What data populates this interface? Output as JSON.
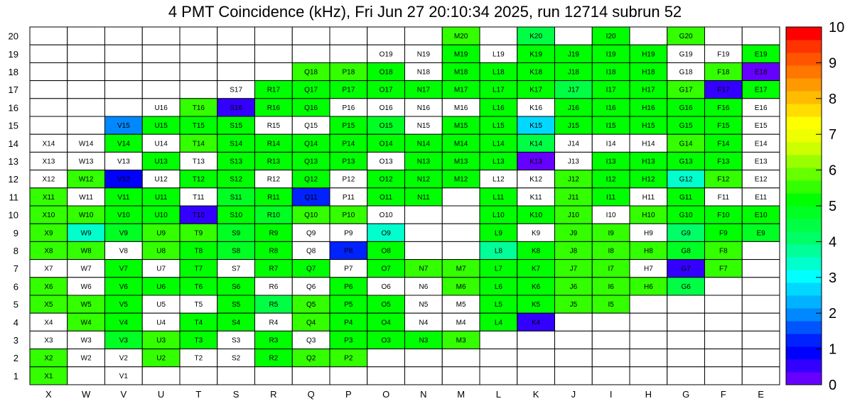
{
  "chart_data": {
    "type": "heatmap",
    "title": "4 PMT Coincidence (kHz), Fri Jun 27 20:10:34 2025, run 12714 subrun 52",
    "columns": [
      "X",
      "W",
      "V",
      "U",
      "T",
      "S",
      "R",
      "Q",
      "P",
      "O",
      "N",
      "M",
      "L",
      "K",
      "J",
      "I",
      "H",
      "G",
      "F",
      "E"
    ],
    "rows": [
      20,
      19,
      18,
      17,
      16,
      15,
      14,
      13,
      12,
      11,
      10,
      9,
      8,
      7,
      6,
      5,
      4,
      3,
      2,
      1
    ],
    "zlim": [
      0,
      10
    ],
    "colorbar_ticks": [
      "0",
      "1",
      "2",
      "3",
      "4",
      "5",
      "6",
      "7",
      "8",
      "9",
      "10"
    ],
    "grid": true,
    "legend_position": "right",
    "palette": [
      "#6600ff",
      "#3300ff",
      "#0000ff",
      "#0022ff",
      "#0055ff",
      "#0088ff",
      "#00b2ff",
      "#00d8ff",
      "#00ffff",
      "#00ffcc",
      "#00ff99",
      "#00ff66",
      "#00ff44",
      "#00ff22",
      "#00ff00",
      "#33ff00",
      "#66ff00",
      "#99ff00",
      "#ccff00",
      "#eeff00",
      "#ffff00",
      "#ffdd00",
      "#ffbb00",
      "#ff9900",
      "#ff7700",
      "#ff5500",
      "#ff3300",
      "#ff0000"
    ],
    "cells": [
      [
        "",
        "",
        "",
        "",
        "",
        "",
        "",
        "",
        "",
        "",
        "",
        "M20 5.4",
        "",
        "K20 4.6",
        "",
        "I20 5.3",
        "",
        "G20 5.4",
        "",
        ""
      ],
      [
        "",
        "",
        "",
        "",
        "",
        "",
        "",
        "",
        "",
        "O19",
        "N19",
        "M19 5.3",
        "L19",
        "K19 5.3",
        "J19 5.2",
        "I19 5.2",
        "H19 5.1",
        "G19",
        "F19",
        "E19 5.3"
      ],
      [
        "",
        "",
        "",
        "",
        "",
        "",
        "",
        "Q18 5.5",
        "P18 5.4",
        "O18 5.3",
        "N18",
        "M18 5.3",
        "L18 5.3",
        "K18 5.2",
        "J18 5.1",
        "I18 5.1",
        "H18 5.1",
        "G18",
        "F18 5.5",
        "E18 0.2"
      ],
      [
        "",
        "",
        "",
        "",
        "",
        "S17",
        "R17 5.3",
        "Q17 5.1",
        "P17 5.2",
        "O17 5.1",
        "N17 5.3",
        "M17 5.3",
        "L17 5.2",
        "K17 5.1",
        "J17 4.6",
        "I17 5.1",
        "H17 5.1",
        "G17 5.6",
        "F17 0.4",
        "E17 5.3"
      ],
      [
        "",
        "",
        "",
        "U16",
        "T16 5.5",
        "S16 0.6",
        "R16 5.2",
        "Q16 5.1",
        "P16",
        "O16",
        "N16",
        "M16",
        "L16 5.2",
        "K16",
        "J16 5.1",
        "I16 5.2",
        "H16 5.2",
        "G16 5.0",
        "F16 5.1",
        "E16"
      ],
      [
        "",
        "",
        "V15 2.1",
        "U15 5.0",
        "T15 5.3",
        "S15 5.1",
        "R15",
        "Q15",
        "P15 5.2",
        "O15 4.9",
        "N15",
        "M15 5.3",
        "L15 5.3",
        "K15 2.5",
        "J15 5.1",
        "I15 5.2",
        "H15 5.1",
        "G15 5.0",
        "F15 5.3",
        "E15"
      ],
      [
        "X14",
        "W14",
        "V14 5.0",
        "U14",
        "T14 5.4",
        "S14 5.1",
        "R14 5.2",
        "Q14 5.0",
        "P14 5.2",
        "O14 5.1",
        "N14 5.3",
        "M14 5.3",
        "L14 5.2",
        "K14 4.6",
        "J14",
        "I14",
        "H14",
        "G14 5.4",
        "F14 5.3",
        "E14"
      ],
      [
        "X13",
        "W13",
        "V13",
        "U13 5.1",
        "T13",
        "S13 5.1",
        "R13 5.2",
        "Q13 5.0",
        "P13 5.2",
        "O13",
        "N13 5.2",
        "M13 5.3",
        "L13 5.2",
        "K13 0.3",
        "J13",
        "I13 5.2",
        "H13 5.2",
        "G13 5.1",
        "F13 5.2",
        "E13"
      ],
      [
        "X12",
        "W12 5.6",
        "V12 1.0",
        "U12",
        "T12 5.3",
        "S12 5.1",
        "R12",
        "Q12 5.0",
        "P12",
        "O12 5.1",
        "N12 5.2",
        "M12 5.3",
        "L12",
        "K12",
        "J12 5.4",
        "I12 5.2",
        "H12 5.3",
        "G12 3.5",
        "F12 5.6",
        "E12"
      ],
      [
        "X11 5.6",
        "W11",
        "V11 5.0",
        "U11 5.1",
        "T11",
        "S11 4.9",
        "R11 5.1",
        "Q11 1.3",
        "P11",
        "O11 5.1",
        "N11 5.2",
        "",
        "L11 5.3",
        "K11",
        "J11 5.4",
        "I11 5.2",
        "H11",
        "G11 5.1",
        "F11",
        "E11"
      ],
      [
        "X10 5.6",
        "W10 5.5",
        "V10 5.0",
        "U10 5.1",
        "T10 0.4",
        "S10 5.1",
        "R10 4.7",
        "Q10 5.4",
        "P10 5.4",
        "O10",
        "",
        "",
        "L10 5.3",
        "K10 5.2",
        "J10 5.4",
        "I10",
        "H10 5.4",
        "G10 5.3",
        "F10 5.3",
        "E10 5.3"
      ],
      [
        "X9 5.6",
        "W9 3.5",
        "V9 4.9",
        "U9 5.4",
        "T9 5.5",
        "S9 4.8",
        "R9 5.2",
        "Q9",
        "P9",
        "O9 3.5",
        "",
        "",
        "L9 5.2",
        "K9",
        "J9 5.4",
        "I9 5.4",
        "H9",
        "G9 4.2",
        "F9 5.2",
        "E9 4.9"
      ],
      [
        "X8 5.5",
        "W8 5.5",
        "V8",
        "U8 5.4",
        "T8 5.3",
        "S8 4.9",
        "R8 5.2",
        "Q8",
        "P8 1.3",
        "O8 5.1",
        "",
        "",
        "L8 3.6",
        "K8 5.3",
        "J8 5.4",
        "I8 5.4",
        "H8 5.4",
        "G8 4.9",
        "F8 5.5",
        ""
      ],
      [
        "X7",
        "W7",
        "V7 5.0",
        "U7",
        "T7 5.3",
        "S7",
        "R7 5.3",
        "Q7 5.1",
        "P7",
        "O7 5.1",
        "N7 5.4",
        "M7 5.5",
        "L7 5.2",
        "K7 5.2",
        "J7 5.4",
        "I7 5.4",
        "H7",
        "G7 0.4",
        "F7 5.6",
        ""
      ],
      [
        "X6 5.5",
        "W6",
        "V6 5.1",
        "U6 5.1",
        "T6 5.3",
        "S6 5.1",
        "R6",
        "Q6",
        "P6 5.2",
        "O6",
        "N6",
        "M6 5.4",
        "L6 5.2",
        "K6 5.3",
        "J6 5.4",
        "I6 5.4",
        "H6 5.4",
        "G6 4.3",
        "",
        ""
      ],
      [
        "X5 5.5",
        "W5 5.5",
        "V5 5.1",
        "U5",
        "T5",
        "S5 5.1",
        "R5 4.4",
        "Q5 5.4",
        "P5 5.2",
        "O5 5.1",
        "N5",
        "M5",
        "L5 5.2",
        "K5 5.3",
        "J5 5.5",
        "I5 5.5",
        "",
        "",
        "",
        ""
      ],
      [
        "X4",
        "W4 5.5",
        "V4 5.1",
        "U4",
        "T4 5.3",
        "S4 5.2",
        "R4",
        "Q4 5.4",
        "P4 5.3",
        "O4 5.3",
        "N4",
        "M4",
        "L4 5.3",
        "K4 0.4",
        "",
        "",
        "",
        "",
        "",
        ""
      ],
      [
        "X3",
        "W3",
        "V3 4.8",
        "U3 5.5",
        "T3 5.3",
        "S3",
        "R3 5.2",
        "Q3",
        "P3 5.3",
        "O3 5.1",
        "N3 5.1",
        "M3 5.4",
        "",
        "",
        "",
        "",
        "",
        "",
        "",
        ""
      ],
      [
        "X2 5.6",
        "W2",
        "V2",
        "U2 5.5",
        "T2",
        "S2",
        "R2 5.3",
        "Q2 5.4",
        "P2 5.4",
        "",
        "",
        "",
        "",
        "",
        "",
        "",
        "",
        "",
        "",
        ""
      ],
      [
        "X1 5.6",
        "",
        "V1",
        "",
        "",
        "",
        "",
        "",
        "",
        "",
        "",
        "",
        "",
        "",
        "",
        "",
        "",
        "",
        "",
        ""
      ]
    ]
  }
}
